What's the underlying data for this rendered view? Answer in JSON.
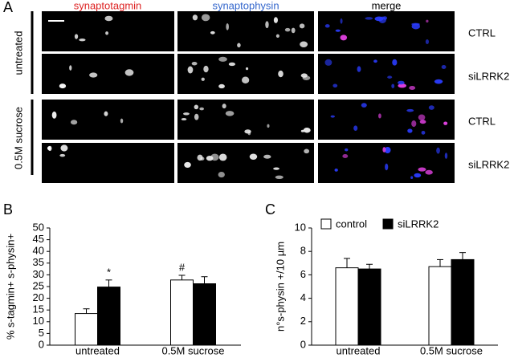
{
  "panel_a": {
    "label": "A",
    "columns": [
      "synaptotagmin",
      "synaptophysin",
      "merge"
    ],
    "groups": [
      "untreated",
      "0.5M sucrose"
    ],
    "row_labels": [
      "CTRL",
      "siLRRK2",
      "CTRL",
      "siLRRK2"
    ]
  },
  "chart_data": [
    {
      "type": "bar",
      "panel": "B",
      "y_label": "% s-tagmin+ s-physin+",
      "categories": [
        "untreated",
        "0.5M sucrose"
      ],
      "series": [
        {
          "color": "#ffffff",
          "values": [
            13.5,
            27.8
          ],
          "errors": [
            2,
            2
          ]
        },
        {
          "color": "#000000",
          "values": [
            24.8,
            26.2
          ],
          "errors": [
            3,
            3
          ]
        }
      ],
      "annotations": [
        "*",
        "#"
      ],
      "ylim": [
        0,
        50
      ],
      "yticks": [
        0,
        5,
        10,
        15,
        20,
        25,
        30,
        35,
        40,
        45,
        50
      ]
    },
    {
      "type": "bar",
      "panel": "C",
      "y_label": "n°s-physin +/10 µm",
      "categories": [
        "untreated",
        "0.5M sucrose"
      ],
      "series": [
        {
          "name": "control",
          "color": "#ffffff",
          "values": [
            6.6,
            6.7
          ],
          "errors": [
            0.8,
            0.6
          ]
        },
        {
          "name": "siLRRK2",
          "color": "#000000",
          "values": [
            6.5,
            7.3
          ],
          "errors": [
            0.4,
            0.6
          ]
        }
      ],
      "ylim": [
        0,
        10
      ],
      "yticks": [
        0,
        2,
        4,
        6,
        8,
        10
      ]
    }
  ]
}
